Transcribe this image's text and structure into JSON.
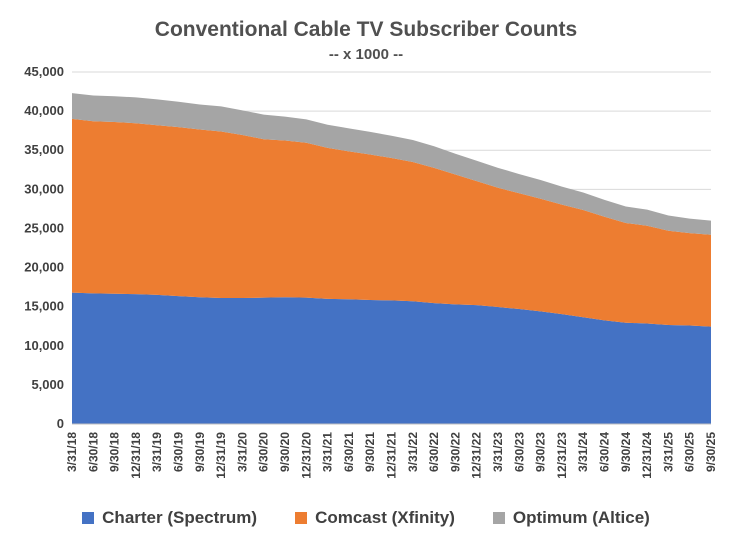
{
  "chart_data": {
    "type": "area",
    "stacked": true,
    "title": "Conventional Cable TV Subscriber Counts",
    "subtitle": "-- x 1000 --",
    "xlabel": "",
    "ylabel": "",
    "ylim": [
      0,
      45000
    ],
    "yticks": [
      0,
      5000,
      10000,
      15000,
      20000,
      25000,
      30000,
      35000,
      40000,
      45000
    ],
    "ytick_labels": [
      "0",
      "5,000",
      "10,000",
      "15,000",
      "20,000",
      "25,000",
      "30,000",
      "35,000",
      "40,000",
      "45,000"
    ],
    "grid": true,
    "legend_position": "bottom",
    "categories": [
      "3/31/18",
      "6/30/18",
      "9/30/18",
      "12/31/18",
      "3/31/19",
      "6/30/19",
      "9/30/19",
      "12/31/19",
      "3/31/20",
      "6/30/20",
      "9/30/20",
      "12/31/20",
      "3/31/21",
      "6/30/21",
      "9/30/21",
      "12/31/21",
      "3/31/22",
      "6/30/22",
      "9/30/22",
      "12/31/22",
      "3/31/23",
      "6/30/23",
      "9/30/23",
      "12/31/23",
      "3/31/24",
      "6/30/24",
      "9/30/24",
      "12/31/24",
      "3/31/25",
      "6/30/25",
      "9/30/25"
    ],
    "series": [
      {
        "name": "Charter (Spectrum)",
        "color": "#4472C4",
        "values": [
          16800,
          16700,
          16650,
          16600,
          16500,
          16350,
          16200,
          16100,
          16100,
          16150,
          16200,
          16150,
          16000,
          15950,
          15850,
          15800,
          15700,
          15450,
          15300,
          15200,
          14950,
          14700,
          14400,
          14050,
          13650,
          13250,
          12950,
          12850,
          12650,
          12600,
          12450
        ]
      },
      {
        "name": "Comcast (Xfinity)",
        "color": "#ED7D31",
        "values": [
          22200,
          22000,
          21950,
          21850,
          21700,
          21600,
          21450,
          21300,
          20850,
          20250,
          20050,
          19800,
          19300,
          18900,
          18600,
          18200,
          17800,
          17300,
          16600,
          15850,
          15250,
          14800,
          14400,
          14000,
          13700,
          13250,
          12750,
          12500,
          12050,
          11800,
          11750
        ]
      },
      {
        "name": "Optimum (Altice)",
        "color": "#A5A5A5",
        "values": [
          3300,
          3300,
          3300,
          3300,
          3300,
          3250,
          3200,
          3200,
          3150,
          3150,
          3050,
          3000,
          2950,
          2950,
          2900,
          2850,
          2800,
          2750,
          2650,
          2600,
          2550,
          2450,
          2400,
          2300,
          2250,
          2150,
          2100,
          2050,
          1950,
          1850,
          1800
        ]
      }
    ]
  }
}
